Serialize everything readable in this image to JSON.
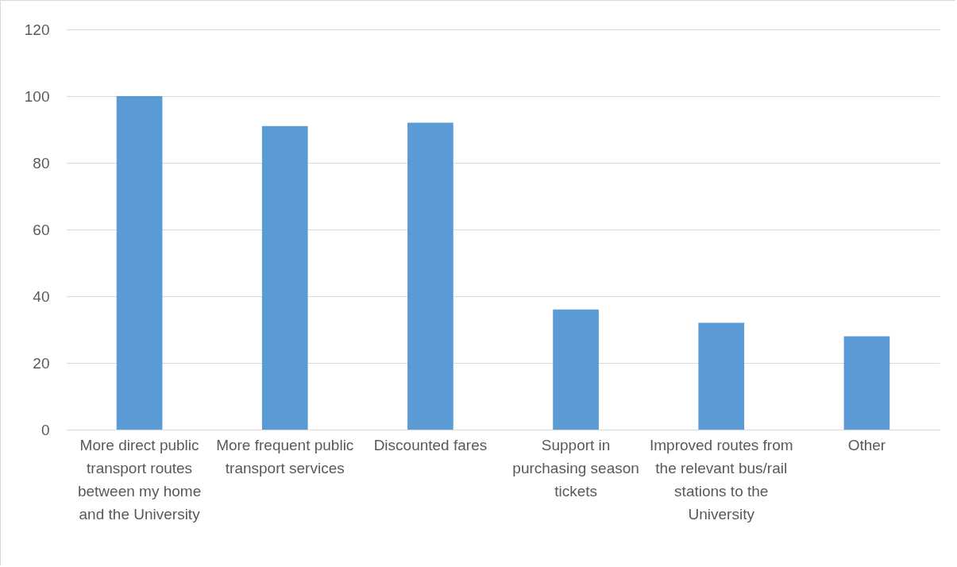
{
  "chart_data": {
    "type": "bar",
    "categories": [
      "More direct public transport routes between my home and the University",
      "More frequent public transport services",
      "Discounted fares",
      "Support in purchasing season tickets",
      "Improved routes from the relevant bus/rail stations to the University",
      "Other"
    ],
    "values": [
      100,
      91,
      92,
      36,
      32,
      28
    ],
    "color": "#5b9bd5",
    "ylim": [
      0,
      120
    ],
    "yticks": [
      0,
      20,
      40,
      60,
      80,
      100,
      120
    ],
    "grid": "y"
  }
}
